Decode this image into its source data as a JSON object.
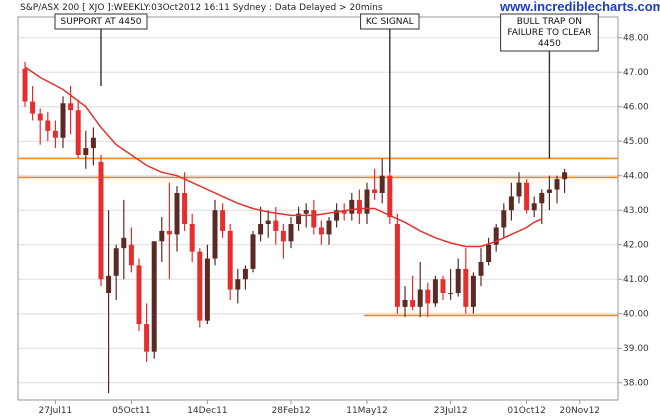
{
  "header_text": "S&P/ASX 200 [ XJO ]:WEEKLY:03Oct2012 16:11 Sydney : Data Delayed > 20mins",
  "watermark": "www.incrediblecharts.com",
  "colors": {
    "bull": "#5c2a24",
    "bear": "#e52f2f",
    "ma": "#e53030",
    "support": "#f0892a",
    "grid": "#dddddd",
    "axis": "#999999"
  },
  "chart_data": {
    "type": "candlestick",
    "ylim": [
      37.5,
      48.6
    ],
    "y_ticks": [
      "38.00",
      "39.00",
      "40.00",
      "41.00",
      "42.00",
      "43.00",
      "44.00",
      "45.00",
      "46.00",
      "47.00",
      "48.00"
    ],
    "x_ticks": [
      "27Jul11",
      "05Oct11",
      "14Dec11",
      "28Feb12",
      "11May12",
      "23Jul12",
      "01Oct12",
      "20Nov12"
    ],
    "x_tick_weeks": [
      4,
      14,
      24,
      35,
      45,
      56,
      66,
      73
    ],
    "horizontal_lines": [
      {
        "value": 44.5
      },
      {
        "value": 43.95
      },
      {
        "value": 39.95,
        "from_week": 45
      }
    ],
    "ohlc": [
      [
        47.1,
        47.3,
        46.0,
        46.15
      ],
      [
        46.15,
        46.6,
        45.6,
        45.8
      ],
      [
        45.8,
        45.95,
        44.9,
        45.6
      ],
      [
        45.6,
        45.85,
        45.0,
        45.3
      ],
      [
        45.3,
        45.6,
        44.8,
        45.1
      ],
      [
        45.1,
        46.3,
        44.8,
        46.1
      ],
      [
        46.1,
        46.6,
        45.2,
        45.9
      ],
      [
        45.9,
        46.2,
        44.5,
        44.6
      ],
      [
        44.6,
        45.3,
        44.2,
        44.8
      ],
      [
        44.8,
        45.4,
        44.3,
        45.1
      ],
      [
        44.4,
        44.6,
        40.8,
        41.0
      ],
      [
        40.6,
        43.0,
        37.7,
        41.1
      ],
      [
        41.1,
        42.0,
        40.4,
        41.9
      ],
      [
        41.9,
        43.3,
        41.0,
        42.2
      ],
      [
        42.0,
        42.5,
        41.2,
        41.4
      ],
      [
        41.4,
        41.6,
        39.5,
        39.7
      ],
      [
        39.7,
        40.3,
        38.6,
        38.9
      ],
      [
        38.9,
        42.1,
        38.7,
        42.1
      ],
      [
        42.1,
        42.8,
        41.5,
        42.4
      ],
      [
        42.4,
        43.8,
        41.0,
        42.3
      ],
      [
        42.3,
        43.7,
        41.8,
        43.5
      ],
      [
        43.5,
        44.1,
        42.4,
        42.6
      ],
      [
        42.6,
        42.9,
        41.5,
        41.8
      ],
      [
        41.8,
        41.9,
        39.6,
        39.8
      ],
      [
        39.8,
        42.0,
        39.7,
        41.6
      ],
      [
        41.6,
        43.3,
        41.4,
        43.0
      ],
      [
        43.0,
        43.2,
        42.2,
        42.4
      ],
      [
        42.4,
        42.6,
        40.4,
        40.7
      ],
      [
        40.7,
        41.3,
        40.3,
        41.0
      ],
      [
        41.0,
        41.4,
        40.7,
        41.3
      ],
      [
        41.3,
        42.4,
        41.2,
        42.3
      ],
      [
        42.3,
        43.1,
        42.1,
        42.6
      ],
      [
        42.6,
        43.0,
        42.2,
        42.7
      ],
      [
        42.7,
        43.1,
        42.0,
        42.4
      ],
      [
        42.4,
        42.6,
        41.6,
        42.1
      ],
      [
        42.1,
        42.8,
        41.9,
        42.6
      ],
      [
        42.6,
        43.1,
        42.4,
        42.9
      ],
      [
        42.9,
        43.2,
        42.5,
        43.0
      ],
      [
        43.0,
        43.3,
        42.3,
        42.5
      ],
      [
        42.5,
        42.7,
        42.0,
        42.3
      ],
      [
        42.3,
        42.8,
        42.0,
        42.7
      ],
      [
        42.7,
        43.2,
        42.5,
        43.0
      ],
      [
        43.0,
        43.2,
        42.7,
        42.9
      ],
      [
        42.9,
        43.5,
        42.7,
        43.3
      ],
      [
        43.3,
        43.6,
        42.6,
        42.9
      ],
      [
        42.9,
        43.8,
        42.6,
        43.6
      ],
      [
        43.6,
        44.2,
        43.3,
        43.5
      ],
      [
        43.5,
        44.5,
        43.2,
        44.0
      ],
      [
        44.0,
        44.3,
        42.6,
        42.8
      ],
      [
        42.6,
        42.9,
        40.0,
        40.2
      ],
      [
        40.2,
        40.8,
        39.9,
        40.4
      ],
      [
        40.4,
        41.1,
        40.1,
        40.2
      ],
      [
        40.2,
        41.5,
        39.9,
        40.7
      ],
      [
        40.7,
        40.9,
        39.9,
        40.3
      ],
      [
        40.3,
        41.1,
        40.2,
        41.0
      ],
      [
        41.0,
        41.1,
        40.4,
        40.6
      ],
      [
        40.6,
        41.3,
        40.4,
        40.6
      ],
      [
        40.6,
        41.6,
        40.5,
        41.3
      ],
      [
        41.3,
        41.9,
        40.0,
        40.2
      ],
      [
        40.2,
        41.2,
        40.0,
        41.1
      ],
      [
        41.1,
        41.9,
        40.8,
        41.5
      ],
      [
        41.5,
        42.2,
        41.4,
        42.0
      ],
      [
        42.0,
        42.6,
        41.8,
        42.5
      ],
      [
        42.5,
        43.2,
        42.2,
        43.0
      ],
      [
        43.0,
        43.8,
        42.7,
        43.4
      ],
      [
        43.4,
        44.1,
        43.2,
        43.8
      ],
      [
        43.8,
        43.9,
        42.9,
        43.0
      ],
      [
        43.0,
        43.4,
        42.8,
        43.2
      ],
      [
        43.2,
        43.6,
        42.6,
        43.5
      ],
      [
        43.5,
        44.0,
        43.0,
        43.6
      ],
      [
        43.6,
        44.0,
        43.2,
        43.9
      ],
      [
        43.9,
        44.2,
        43.5,
        44.1
      ]
    ],
    "ma": [
      [
        0,
        47.15
      ],
      [
        2,
        46.85
      ],
      [
        5,
        46.5
      ],
      [
        8,
        46.0
      ],
      [
        10,
        45.4
      ],
      [
        12,
        44.9
      ],
      [
        14,
        44.6
      ],
      [
        16,
        44.3
      ],
      [
        18,
        44.1
      ],
      [
        20,
        44.0
      ],
      [
        22,
        43.8
      ],
      [
        24,
        43.6
      ],
      [
        26,
        43.4
      ],
      [
        28,
        43.2
      ],
      [
        30,
        43.05
      ],
      [
        32,
        42.95
      ],
      [
        35,
        42.85
      ],
      [
        38,
        42.85
      ],
      [
        41,
        42.95
      ],
      [
        44,
        43.05
      ],
      [
        46,
        43.05
      ],
      [
        48,
        42.85
      ],
      [
        50,
        42.65
      ],
      [
        52,
        42.4
      ],
      [
        54,
        42.2
      ],
      [
        56,
        42.05
      ],
      [
        58,
        41.95
      ],
      [
        60,
        41.95
      ],
      [
        62,
        42.1
      ],
      [
        64,
        42.3
      ],
      [
        66,
        42.5
      ],
      [
        67,
        42.65
      ],
      [
        68,
        42.75
      ]
    ],
    "annotations": [
      {
        "lines": [
          "SUPPORT AT 4450"
        ],
        "week": 10,
        "y_to": 46.6
      },
      {
        "lines": [
          "KC SIGNAL"
        ],
        "week": 48,
        "y_to": 44.1
      },
      {
        "lines": [
          "BULL TRAP ON",
          "FAILURE TO CLEAR",
          "4450"
        ],
        "week": 69,
        "y_to": 44.5
      }
    ]
  }
}
